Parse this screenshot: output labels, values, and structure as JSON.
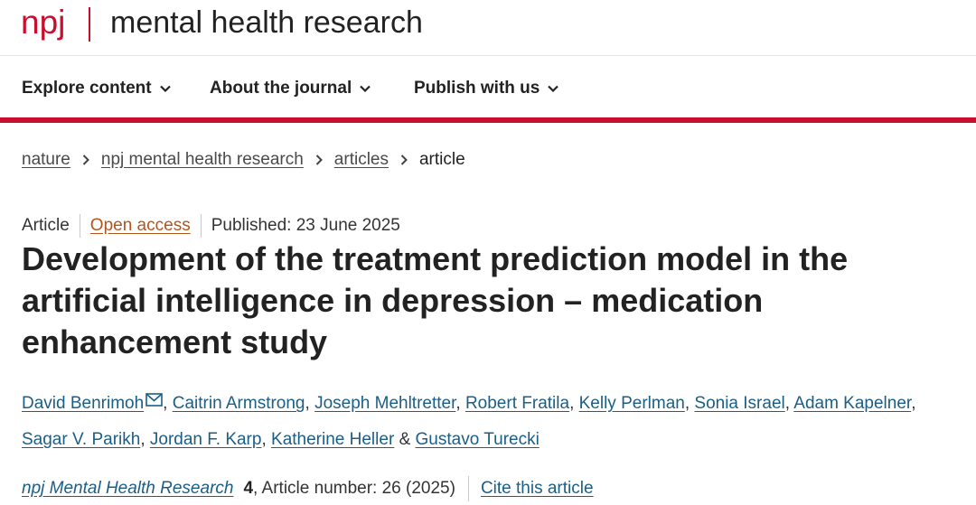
{
  "brand": {
    "npj": "npj",
    "journal_name": "mental health research"
  },
  "nav": {
    "items": [
      {
        "label": "Explore content"
      },
      {
        "label": "About the journal"
      },
      {
        "label": "Publish with us"
      }
    ]
  },
  "breadcrumb": {
    "items": [
      "nature",
      "npj mental health research",
      "articles"
    ],
    "current": "article"
  },
  "meta": {
    "type": "Article",
    "access": "Open access",
    "published": "Published: 23 June 2025"
  },
  "article": {
    "title": "Development of the treatment prediction model in the artificial intelligence in depression – medication enhancement study"
  },
  "authors": {
    "list": [
      "David Benrimoh",
      "Caitrin Armstrong",
      "Joseph Mehltretter",
      "Robert Fratila",
      "Kelly Perlman",
      "Sonia Israel",
      "Adam Kapelner",
      "Sagar V. Parikh",
      "Jordan F. Karp",
      "Katherine Heller",
      "Gustavo Turecki"
    ],
    "comma": ",",
    "ampersand": "&"
  },
  "citation": {
    "journal": "npj Mental Health Research",
    "volume": "4",
    "article_number": ", Article number: 26 (2025)",
    "cite_label": "Cite this article"
  },
  "colors": {
    "brand_red": "#c8102e",
    "link_blue": "#1b5e87",
    "open_access_orange": "#b5541c"
  },
  "icons": {
    "nav_chevron": "chevron-down-icon",
    "breadcrumb_separator": "chevron-right-icon",
    "corresponding_author": "mail-icon"
  }
}
